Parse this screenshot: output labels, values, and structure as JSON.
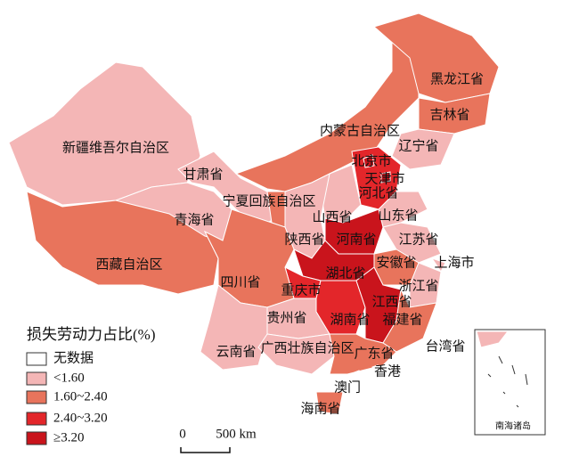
{
  "legend": {
    "title": "损失劳动力占比(%)",
    "items": [
      {
        "label": "无数据",
        "color": "#ffffff"
      },
      {
        "label": "<1.60",
        "color": "#f4b6b6"
      },
      {
        "label": "1.60~2.40",
        "color": "#e8745c"
      },
      {
        "label": "2.40~3.20",
        "color": "#e3262a"
      },
      {
        "label": "≥3.20",
        "color": "#c9141c"
      }
    ]
  },
  "scale_bar": {
    "zero": "0",
    "distance": "500 km"
  },
  "inset": {
    "label": "南海诸岛"
  },
  "regions": [
    {
      "name": "新疆维吾尔自治区",
      "color": "#f4b6b6"
    },
    {
      "name": "西藏自治区",
      "color": "#e8745c"
    },
    {
      "name": "青海省",
      "color": "#f4b6b6"
    },
    {
      "name": "甘肃省",
      "color": "#f4b6b6"
    },
    {
      "name": "内蒙古自治区",
      "color": "#e8745c"
    },
    {
      "name": "黑龙江省",
      "color": "#e8745c"
    },
    {
      "name": "吉林省",
      "color": "#e8745c"
    },
    {
      "name": "辽宁省",
      "color": "#f4b6b6"
    },
    {
      "name": "河北省",
      "color": "#e3262a"
    },
    {
      "name": "山西省",
      "color": "#f4b6b6"
    },
    {
      "name": "陕西省",
      "color": "#f4b6b6"
    },
    {
      "name": "宁夏回族自治区",
      "color": "#e8745c"
    },
    {
      "name": "山东省",
      "color": "#f4b6b6"
    },
    {
      "name": "河南省",
      "color": "#c9141c"
    },
    {
      "name": "江苏省",
      "color": "#f4b6b6"
    },
    {
      "name": "安徽省",
      "color": "#e8745c"
    },
    {
      "name": "上海市",
      "color": "#f4b6b6"
    },
    {
      "name": "浙江省",
      "color": "#f4b6b6"
    },
    {
      "name": "湖北省",
      "color": "#c9141c"
    },
    {
      "name": "重庆市",
      "color": "#e3262a"
    },
    {
      "name": "四川省",
      "color": "#e8745c"
    },
    {
      "name": "湖南省",
      "color": "#e3262a"
    },
    {
      "name": "江西省",
      "color": "#c9141c"
    },
    {
      "name": "福建省",
      "color": "#e8745c"
    },
    {
      "name": "贵州省",
      "color": "#f4b6b6"
    },
    {
      "name": "云南省",
      "color": "#f4b6b6"
    },
    {
      "name": "广西壮族自治区",
      "color": "#f4b6b6"
    },
    {
      "name": "广东省",
      "color": "#e8745c"
    },
    {
      "name": "海南省",
      "color": "#e8745c"
    },
    {
      "name": "台湾省",
      "color": "#ffffff"
    },
    {
      "name": "北京市",
      "color": "#c9141c"
    },
    {
      "name": "天津市",
      "color": "#c9141c"
    },
    {
      "name": "香港",
      "color": "#ffffff"
    },
    {
      "name": "澳门",
      "color": "#ffffff"
    }
  ]
}
